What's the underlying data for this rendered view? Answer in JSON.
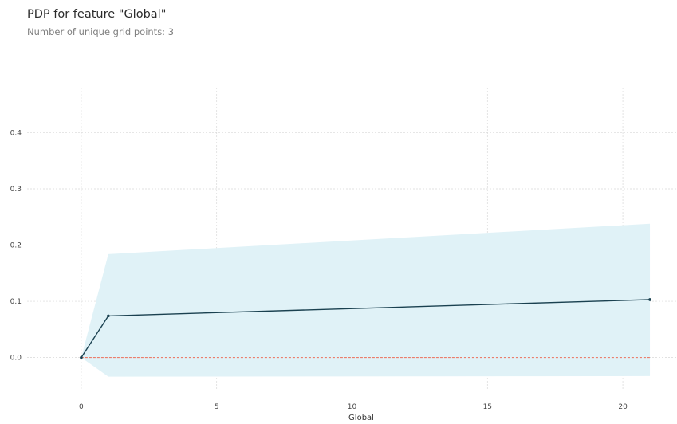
{
  "title": "PDP for feature \"Global\"",
  "subtitle": "Number of unique grid points: 3",
  "colors": {
    "line": "#1a4150",
    "band": "#e0f2f7",
    "zero_line": "#ec6e58",
    "grid": "#d7d7d7"
  },
  "chart_data": {
    "type": "line",
    "title": "PDP for feature \"Global\"",
    "xlabel": "Global",
    "ylabel": "",
    "xlim": [
      -2,
      22
    ],
    "ylim": [
      -0.07,
      0.48
    ],
    "xticks": [
      0,
      5,
      10,
      15,
      20
    ],
    "yticks": [
      0.0,
      0.1,
      0.2,
      0.3,
      0.4
    ],
    "xtick_labels": [
      "0",
      "5",
      "10",
      "15",
      "20"
    ],
    "ytick_labels": [
      "0.0",
      "0.1",
      "0.2",
      "0.3",
      "0.4"
    ],
    "grid": true,
    "series": [
      {
        "x": [
          0,
          1,
          21
        ],
        "y": [
          0.0,
          0.074,
          0.103
        ],
        "upper": [
          0.0,
          0.184,
          0.238
        ],
        "lower": [
          0.0,
          -0.034,
          -0.033
        ]
      }
    ],
    "reference_line": {
      "y": 0.0,
      "style": "dashed"
    }
  }
}
